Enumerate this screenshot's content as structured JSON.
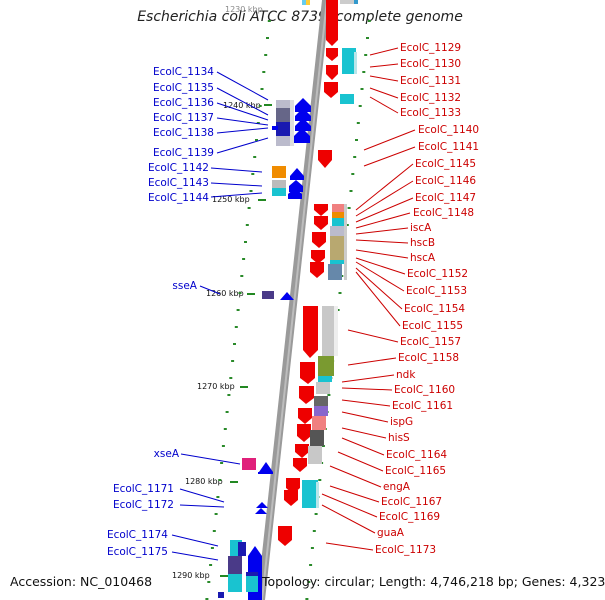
{
  "title": "Escherichia coli ATCC 8739, complete genome",
  "accession_text": "Accession: NC_010468",
  "topology_text": "Topology: circular; Length: 4,746,218 bp; Genes: 4,323",
  "colors": {
    "forward_label": "#0000cc",
    "reverse_label": "#cc0000",
    "forward_gene": "#0000ee",
    "reverse_gene": "#ee0000",
    "backbone": "#888888",
    "tick": "#228822"
  },
  "top_fragment": "1230 kbp",
  "scale": [
    {
      "label": "1240 kbp"
    },
    {
      "label": "1250 kbp"
    },
    {
      "label": "1260 kbp"
    },
    {
      "label": "1270 kbp"
    },
    {
      "label": "1280 kbp"
    },
    {
      "label": "1290 kbp"
    }
  ],
  "left_labels": [
    "EcolC_1134",
    "EcolC_1135",
    "EcolC_1136",
    "EcolC_1137",
    "EcolC_1138",
    "EcolC_1139",
    "EcolC_1142",
    "EcolC_1143",
    "EcolC_1144",
    "sseA",
    "xseA",
    "EcolC_1171",
    "EcolC_1172",
    "EcolC_1174",
    "EcolC_1175"
  ],
  "right_labels": [
    "EcolC_1129",
    "EcolC_1130",
    "EcolC_1131",
    "EcolC_1132",
    "EcolC_1133",
    "EcolC_1140",
    "EcolC_1141",
    "EcolC_1145",
    "EcolC_1146",
    "EcolC_1147",
    "EcolC_1148",
    "iscA",
    "hscB",
    "hscA",
    "EcolC_1152",
    "EcolC_1153",
    "EcolC_1154",
    "EcolC_1155",
    "EcolC_1157",
    "EcolC_1158",
    "ndk",
    "EcolC_1160",
    "EcolC_1161",
    "ispG",
    "hisS",
    "EcolC_1164",
    "EcolC_1165",
    "engA",
    "EcolC_1167",
    "EcolC_1169",
    "guaA",
    "EcolC_1173"
  ]
}
